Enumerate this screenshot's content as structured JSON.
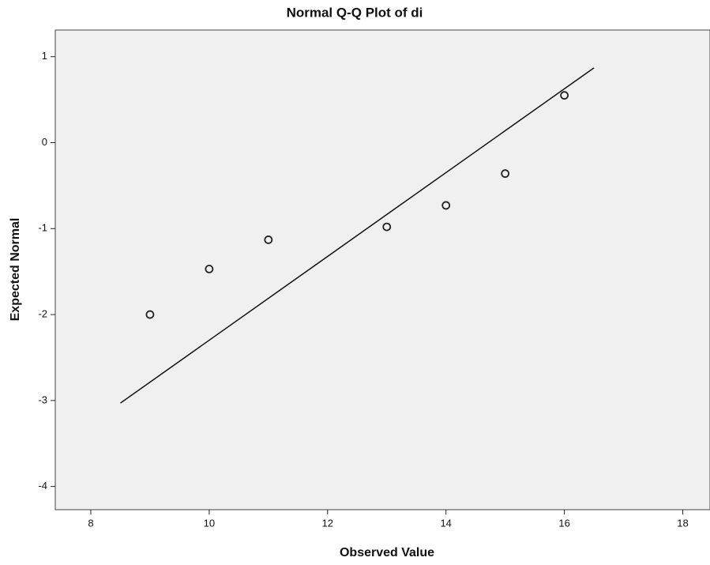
{
  "chart_data": {
    "type": "scatter",
    "title": "Normal Q-Q Plot of di",
    "x_label": "Observed Value",
    "y_label": "Expected Normal",
    "x": [
      9,
      10,
      11,
      13,
      14,
      15,
      16
    ],
    "y": [
      -2.0,
      -1.47,
      -1.13,
      -0.98,
      -0.73,
      -0.36,
      0.55
    ],
    "point_color": "#222222",
    "reference_line": {
      "x": [
        8.5,
        16.5
      ],
      "y": [
        -3.03,
        0.87
      ],
      "color": "#111111"
    },
    "xlim": [
      7.4,
      18.46
    ],
    "ylim": [
      -4.27,
      1.31
    ],
    "xticks": [
      8,
      10,
      12,
      14,
      16,
      18
    ],
    "yticks": [
      1,
      0,
      -1,
      -2,
      -3,
      -4
    ],
    "plot_background": "#f0f0f0"
  }
}
